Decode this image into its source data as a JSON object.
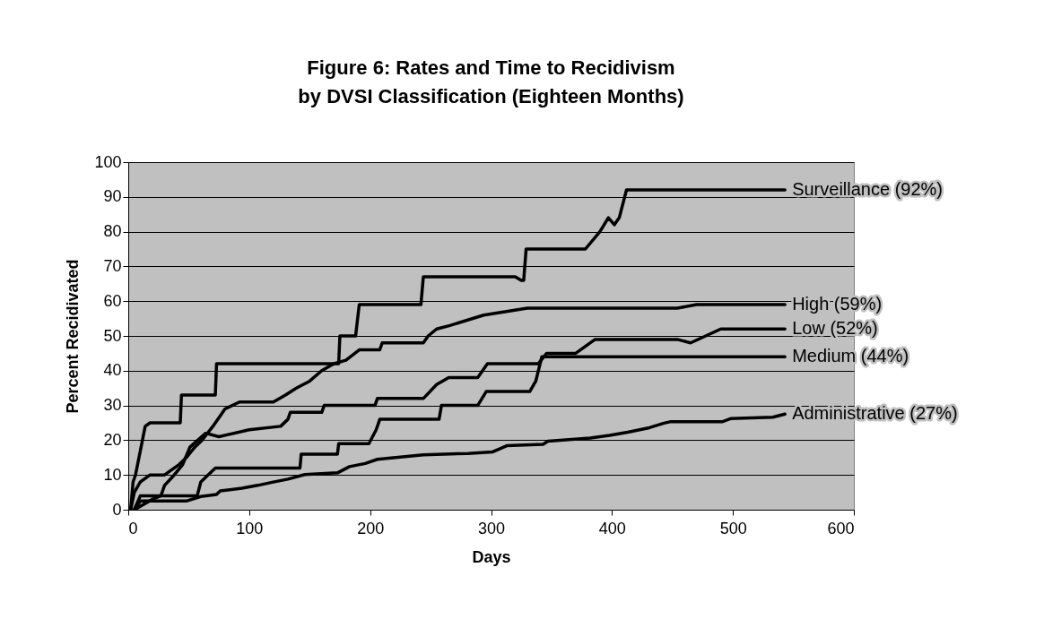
{
  "chart_data": {
    "type": "line",
    "title": "Figure 6: Rates and Time to Recidivism\nby DVSI Classification (Eighteen Months)",
    "xlabel": "Days",
    "ylabel": "Percent Recidivated",
    "xlim": [
      0,
      600
    ],
    "xticks": [
      0,
      100,
      200,
      300,
      400,
      500,
      600
    ],
    "ylim": [
      0,
      100
    ],
    "yticks": [
      0,
      10,
      20,
      30,
      40,
      50,
      60,
      70,
      80,
      90,
      100
    ],
    "grid": "y",
    "legend": false,
    "marker": "none",
    "line_style": "solid",
    "series": [
      {
        "name": "Surveillance (92%)",
        "color": "#000000",
        "x": [
          2,
          4,
          6,
          10,
          14,
          18,
          43,
          44,
          72,
          73,
          174,
          175,
          188,
          191,
          242,
          244,
          320,
          325,
          327,
          329,
          378,
          390,
          397,
          402,
          406,
          412,
          543
        ],
        "values": [
          0,
          8,
          10,
          17,
          24,
          25,
          25,
          33,
          33,
          42,
          42,
          50,
          50,
          59,
          59,
          67,
          67,
          66,
          66,
          75,
          75,
          80,
          84,
          82,
          84,
          92,
          92
        ]
      },
      {
        "name": "High (59%)",
        "color": "#000000",
        "x": [
          2,
          5,
          10,
          18,
          30,
          42,
          48,
          55,
          61,
          70,
          80,
          92,
          120,
          130,
          139,
          150,
          160,
          170,
          180,
          191,
          208,
          210,
          244,
          248,
          255,
          266,
          294,
          330,
          454,
          470,
          543
        ],
        "values": [
          0,
          5,
          8,
          10,
          10,
          13,
          15,
          18,
          20,
          24,
          29,
          31,
          31,
          33,
          35,
          37,
          40,
          42,
          43,
          46,
          46,
          48,
          48,
          50,
          52,
          53,
          56,
          58,
          58,
          59,
          59
        ]
      },
      {
        "name": "Low (52%)",
        "color": "#000000",
        "x": [
          5,
          20,
          27,
          30,
          38,
          45,
          51,
          64,
          75,
          100,
          126,
          132,
          134,
          160,
          162,
          204,
          206,
          244,
          255,
          265,
          289,
          297,
          339,
          346,
          370,
          386,
          454,
          465,
          490,
          543
        ],
        "values": [
          0,
          3,
          4,
          7,
          10,
          13,
          18,
          22,
          21,
          23,
          24,
          26,
          28,
          28,
          30,
          30,
          32,
          32,
          36,
          38,
          38,
          42,
          42,
          45,
          45,
          49,
          49,
          48,
          52,
          52
        ]
      },
      {
        "name": "Medium (44%)",
        "color": "#000000",
        "x": [
          5,
          10,
          57,
          60,
          72,
          142,
          143,
          173,
          174,
          199,
          205,
          208,
          257,
          259,
          289,
          296,
          332,
          337,
          342,
          543
        ],
        "values": [
          0,
          4,
          4,
          8,
          12,
          12,
          16,
          16,
          19,
          19,
          23,
          26,
          26,
          30,
          30,
          34,
          34,
          37,
          44,
          44
        ]
      },
      {
        "name": "Administrative (27%)",
        "color": "#000000",
        "x": [
          5,
          10,
          48,
          60,
          73,
          76,
          94,
          107,
          119,
          132,
          146,
          173,
          183,
          196,
          206,
          244,
          281,
          301,
          313,
          343,
          347,
          382,
          398,
          413,
          431,
          443,
          448,
          491,
          498,
          533,
          543
        ],
        "values": [
          0,
          2.5,
          2.5,
          3.8,
          4.4,
          5.4,
          6.2,
          7,
          7.9,
          8.8,
          10.1,
          10.6,
          12.4,
          13.3,
          14.5,
          15.8,
          16.2,
          16.6,
          18.4,
          18.8,
          19.7,
          20.6,
          21.4,
          22.3,
          23.6,
          24.9,
          25.3,
          25.3,
          26.2,
          26.6,
          27.5
        ]
      }
    ]
  }
}
